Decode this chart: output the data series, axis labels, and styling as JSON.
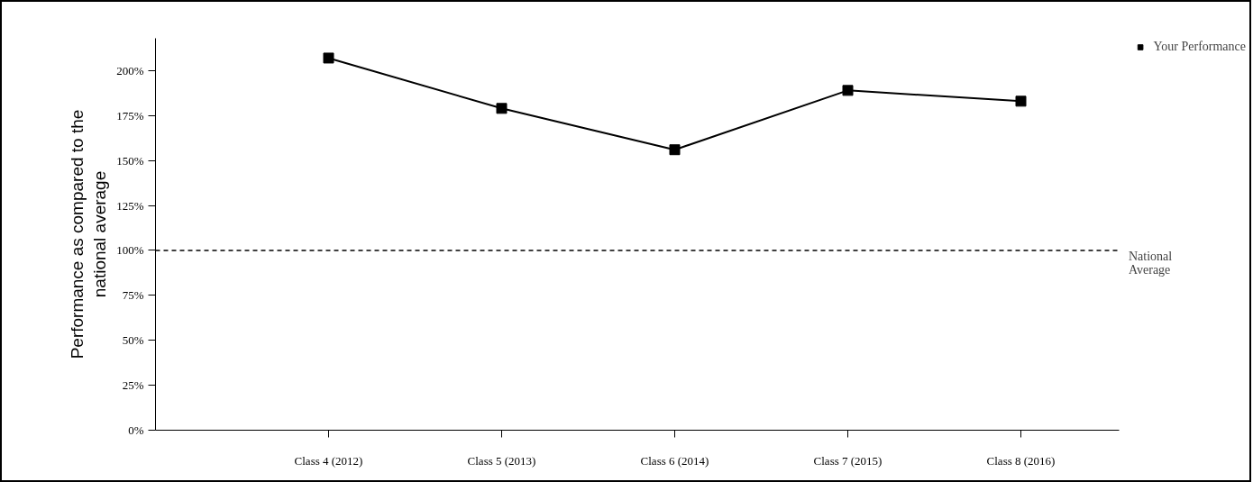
{
  "chart_data": {
    "type": "line",
    "ylabel": "Performance as compared to the\nnational average",
    "categories": [
      "Class 4 (2012)",
      "Class 5 (2013)",
      "Class 6 (2014)",
      "Class 7 (2015)",
      "Class 8 (2016)"
    ],
    "series": [
      {
        "name": "Your Performance",
        "color": "#000000",
        "values": [
          207,
          179,
          156,
          189,
          183
        ]
      }
    ],
    "ylim": [
      0,
      218
    ],
    "yticks": [
      {
        "value": 0,
        "label": "0%"
      },
      {
        "value": 25,
        "label": "25%"
      },
      {
        "value": 50,
        "label": "50%"
      },
      {
        "value": 75,
        "label": "75%"
      },
      {
        "value": 100,
        "label": "100%"
      },
      {
        "value": 125,
        "label": "125%"
      },
      {
        "value": 150,
        "label": "150%"
      },
      {
        "value": 175,
        "label": "175%"
      },
      {
        "value": 200,
        "label": "200%"
      }
    ],
    "ref_lines": [
      {
        "axis": "y",
        "value": 100,
        "label": "National\nAverage",
        "color": "#000000",
        "line_style": "dashed"
      }
    ],
    "marker": "square",
    "line_style": "solid",
    "grid": false,
    "legend": "top right"
  }
}
